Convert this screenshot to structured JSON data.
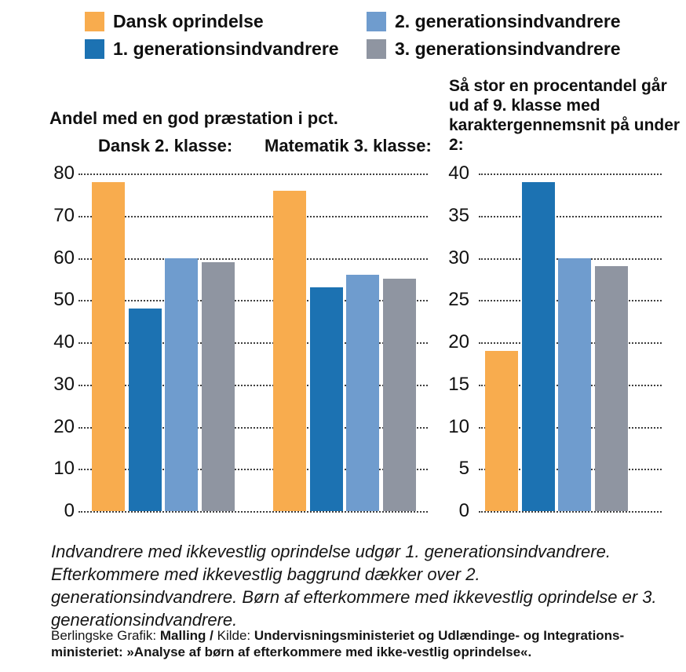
{
  "legend": {
    "items": [
      {
        "label": "Dansk oprindelse",
        "color": "#F8AC4E"
      },
      {
        "label": "1. generationsindvandrere",
        "color": "#1C72B2"
      },
      {
        "label": "2. generationsindvandrere",
        "color": "#6F9CCE"
      },
      {
        "label": "3. generationsindvandrere",
        "color": "#8F95A1"
      }
    ]
  },
  "chart_data": [
    {
      "type": "bar",
      "title": "Andel med en god præstation i pct.",
      "series_labels": [
        "Dansk oprindelse",
        "1. generationsindvandrere",
        "2. generationsindvandrere",
        "3. generationsindvandrere"
      ],
      "groups": [
        {
          "label": "Dansk 2. klasse:",
          "values": [
            78,
            48,
            60,
            59
          ]
        },
        {
          "label": "Matematik 3. klasse:",
          "values": [
            76,
            53,
            56,
            55
          ]
        }
      ],
      "ylim": [
        0,
        80
      ],
      "ytick_step": 10,
      "grid": "horizontal-dotted",
      "legend_position": "top"
    },
    {
      "type": "bar",
      "title": "Så stor en procentandel går ud af 9. klasse med karaktergennemsnit på under 2:",
      "series_labels": [
        "Dansk oprindelse",
        "1. generationsindvandrere",
        "2. generationsindvandrere",
        "3. generationsindvandrere"
      ],
      "groups": [
        {
          "label": "",
          "values": [
            19,
            39,
            30,
            29
          ]
        }
      ],
      "ylim": [
        0,
        40
      ],
      "ytick_step": 5,
      "grid": "horizontal-dotted",
      "legend_position": "top"
    }
  ],
  "footnote": "Indvandrere med ikkevestlig oprindelse udgør 1. generationsindvandrere. Efterkommere med ikkevestlig baggrund dækker over 2. generationsindvandrere. Børn af efterkommere med ikkevestlig oprindelse er 3. generationsindvandrere.",
  "source_segments": [
    {
      "text": "Berlingske Grafik: ",
      "bold": false
    },
    {
      "text": "Malling / ",
      "bold": true
    },
    {
      "text": "Kilde: ",
      "bold": false
    },
    {
      "text": "Undervisningsministeriet og Udlændinge- og Integrations-ministeriet: »Analyse af børn af efterkommere med ikke-vestlig oprindelse«.",
      "bold": true
    }
  ]
}
